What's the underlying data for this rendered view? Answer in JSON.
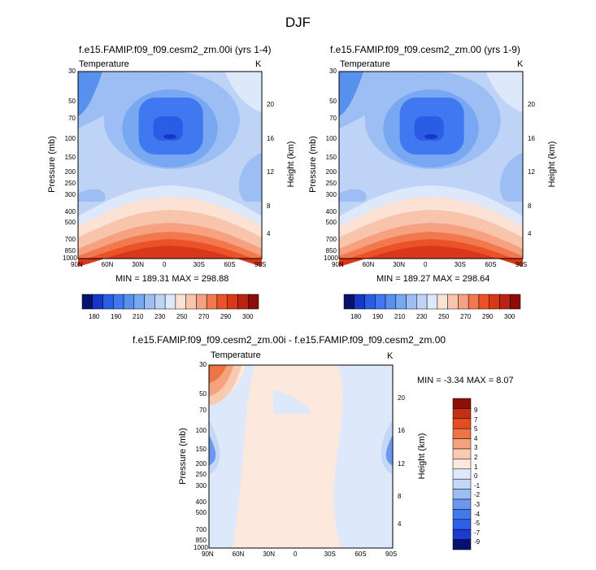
{
  "page": {
    "title": "DJF"
  },
  "colors": {
    "abs_scale": [
      "#08126e",
      "#1638c8",
      "#2a5ce6",
      "#3f78f0",
      "#5890ee",
      "#78a8f2",
      "#9cbef4",
      "#bfd3f7",
      "#dde8fb",
      "#fbe2d4",
      "#f8c4ac",
      "#f6a182",
      "#f2784e",
      "#eb5228",
      "#d93818",
      "#b92412",
      "#8c0c08"
    ],
    "diff_scale": [
      "#08126e",
      "#1c3bd0",
      "#2d5ee6",
      "#4379ee",
      "#6b97ee",
      "#9bbdf3",
      "#c3d7f6",
      "#dde9fb",
      "#fce8dc",
      "#f9caaf",
      "#f6a27d",
      "#ef7445",
      "#e44d22",
      "#c23111",
      "#8f0e08"
    ]
  },
  "chart_data": [
    {
      "type": "heatmap",
      "title": "f.e15.FAMIP.f09_f09.cesm2_zm.00i (yrs 1-4)",
      "left_label": "Temperature",
      "right_label": "K",
      "ylabel": "Pressure (mb)",
      "y2label": "Height (km)",
      "x_ticks": [
        "90N",
        "60N",
        "30N",
        "0",
        "30S",
        "60S",
        "90S"
      ],
      "y_ticks": [
        "30",
        "50",
        "70",
        "100",
        "150",
        "200",
        "250",
        "300",
        "400",
        "500",
        "700",
        "850",
        "1000"
      ],
      "y2_ticks": [
        "20",
        "16",
        "12",
        "8",
        "4"
      ],
      "stats": "MIN = 189.31  MAX = 298.88",
      "colorbar_labels": [
        "180",
        "190",
        "210",
        "230",
        "250",
        "270",
        "290",
        "300"
      ]
    },
    {
      "type": "heatmap",
      "title": "f.e15.FAMIP.f09_f09.cesm2_zm.00 (yrs 1-9)",
      "left_label": "Temperature",
      "right_label": "K",
      "ylabel": "Pressure (mb)",
      "y2label": "Height (km)",
      "x_ticks": [
        "90N",
        "60N",
        "30N",
        "0",
        "30S",
        "60S",
        "90S"
      ],
      "y_ticks": [
        "30",
        "50",
        "70",
        "100",
        "150",
        "200",
        "250",
        "300",
        "400",
        "500",
        "700",
        "850",
        "1000"
      ],
      "y2_ticks": [
        "20",
        "16",
        "12",
        "8",
        "4"
      ],
      "stats": "MIN = 189.27  MAX = 298.64",
      "colorbar_labels": [
        "180",
        "190",
        "210",
        "230",
        "250",
        "270",
        "290",
        "300"
      ]
    },
    {
      "type": "heatmap",
      "title": "f.e15.FAMIP.f09_f09.cesm2_zm.00i - f.e15.FAMIP.f09_f09.cesm2_zm.00",
      "left_label": "Temperature",
      "right_label": "K",
      "ylabel": "Pressure (mb)",
      "y2label": "Height (km)",
      "x_ticks": [
        "90N",
        "60N",
        "30N",
        "0",
        "30S",
        "60S",
        "90S"
      ],
      "y_ticks": [
        "30",
        "50",
        "70",
        "100",
        "150",
        "200",
        "250",
        "300",
        "400",
        "500",
        "700",
        "850",
        "1000"
      ],
      "y2_ticks": [
        "20",
        "16",
        "12",
        "8",
        "4"
      ],
      "stats": "MIN = -3.34  MAX =  8.07",
      "colorbar_labels": [
        "9",
        "7",
        "5",
        "4",
        "3",
        "2",
        "1",
        "0",
        "-1",
        "-2",
        "-3",
        "-4",
        "-5",
        "-7",
        "-9"
      ]
    }
  ]
}
